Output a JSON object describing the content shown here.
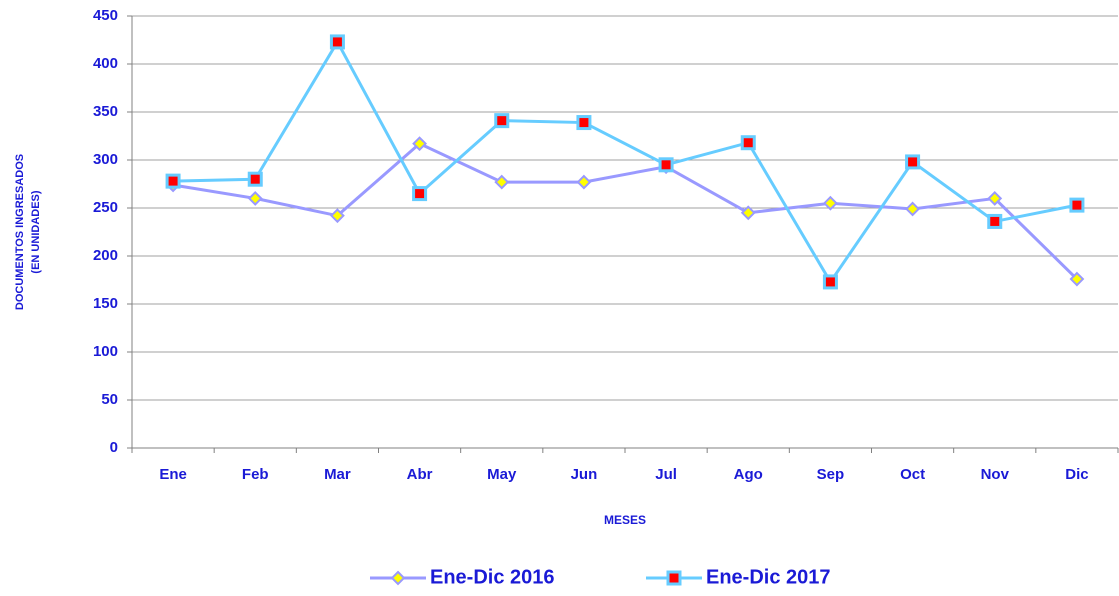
{
  "chart_data": {
    "type": "line",
    "ylabel": [
      "DOCUMENTOS INGRESADOS",
      "(EN UNIDADES)"
    ],
    "xlabel": "MESES",
    "categories": [
      "Ene",
      "Feb",
      "Mar",
      "Abr",
      "May",
      "Jun",
      "Jul",
      "Ago",
      "Sep",
      "Oct",
      "Nov",
      "Dic"
    ],
    "series": [
      {
        "name": "Ene-Dic 2016",
        "color": "#9999ff",
        "marker_color": "#ffff00",
        "marker": "diamond",
        "values": [
          274,
          260,
          242,
          317,
          277,
          277,
          293,
          245,
          255,
          249,
          260,
          176
        ]
      },
      {
        "name": "Ene-Dic 2017",
        "color": "#66ccff",
        "marker_color": "#ff0000",
        "marker": "square",
        "values": [
          278,
          280,
          423,
          265,
          341,
          339,
          295,
          318,
          173,
          298,
          236,
          253
        ]
      }
    ],
    "ylim": [
      0,
      450
    ],
    "yticks": [
      0,
      50,
      100,
      150,
      200,
      250,
      300,
      350,
      400,
      450
    ],
    "grid": true,
    "legend": "bottom"
  }
}
